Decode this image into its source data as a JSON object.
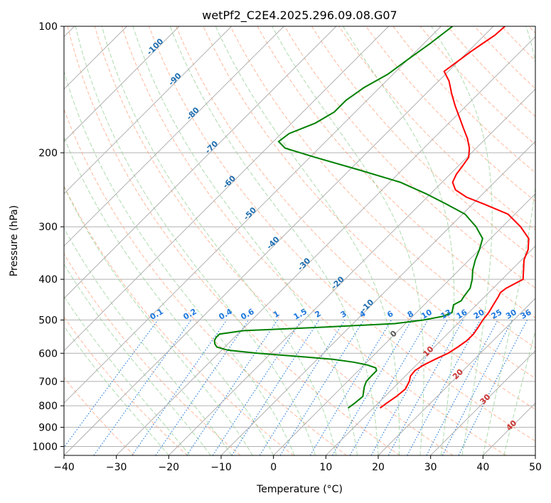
{
  "chart_data": {
    "type": "line",
    "subtype": "skew-T log-P diagram",
    "title": "wetPf2_C2E4.2025.296.09.08.G07",
    "xlabel": "Temperature (°C)",
    "ylabel": "Pressure (hPa)",
    "xlim": [
      -40,
      50
    ],
    "ylim": [
      1050,
      100
    ],
    "y_scale": "log",
    "grid": true,
    "x_ticks": [
      -40,
      -30,
      -20,
      -10,
      0,
      10,
      20,
      30,
      40,
      50
    ],
    "y_ticks": [
      100,
      200,
      300,
      400,
      500,
      600,
      700,
      800,
      900,
      1000
    ],
    "series": [
      {
        "color": "#ff0000",
        "p": [
          810,
          790,
          760,
          730,
          700,
          680,
          660,
          640,
          620,
          600,
          580,
          560,
          540,
          520,
          500,
          480,
          460,
          440,
          430,
          420,
          400,
          380,
          360,
          340,
          320,
          300,
          280,
          265,
          255,
          245,
          235,
          225,
          215,
          205,
          195,
          185,
          175,
          165,
          155,
          145,
          135,
          128,
          120,
          115,
          110,
          105,
          100
        ],
        "t": [
          11.3,
          11.6,
          12.2,
          12.5,
          11.8,
          11.0,
          10.8,
          11.4,
          12.5,
          13.8,
          14.5,
          15.0,
          15.0,
          14.6,
          14.1,
          13.8,
          13.2,
          12.6,
          12.2,
          12.5,
          14.0,
          12.3,
          10.5,
          9.3,
          7.3,
          3.5,
          -1.3,
          -7.8,
          -12.5,
          -16.0,
          -18.0,
          -18.8,
          -19.2,
          -19.7,
          -21.3,
          -23.5,
          -26.2,
          -29.0,
          -32.0,
          -35.0,
          -38.0,
          -40.8,
          -40.0,
          -39.5,
          -38.8,
          -38.0,
          -37.8
        ]
      },
      {
        "color": "#008000",
        "p": [
          810,
          790,
          760,
          740,
          720,
          700,
          680,
          660,
          650,
          640,
          630,
          620,
          610,
          600,
          590,
          580,
          570,
          560,
          550,
          540,
          530,
          520,
          510,
          500,
          490,
          480,
          470,
          460,
          450,
          440,
          430,
          420,
          400,
          380,
          360,
          340,
          320,
          300,
          280,
          265,
          250,
          235,
          220,
          205,
          195,
          188,
          180,
          170,
          160,
          150,
          140,
          130,
          120,
          110,
          100
        ],
        "t": [
          5.2,
          5.5,
          5.8,
          5.0,
          4.2,
          3.6,
          3.5,
          3.5,
          2.8,
          0.7,
          -2.5,
          -7.0,
          -14.5,
          -22.5,
          -28.8,
          -31.5,
          -32.5,
          -33.2,
          -33.5,
          -33.5,
          -29.5,
          -15.0,
          -2.0,
          2.8,
          5.8,
          6.8,
          6.2,
          5.6,
          6.3,
          6.0,
          5.8,
          5.6,
          4.3,
          2.6,
          1.2,
          0.0,
          -1.5,
          -5.0,
          -9.5,
          -15.0,
          -21.0,
          -28.0,
          -38.0,
          -49.0,
          -56.5,
          -59.0,
          -58.5,
          -55.5,
          -54.0,
          -54.0,
          -53.0,
          -51.0,
          -50.0,
          -48.8,
          -47.8
        ]
      }
    ],
    "isotherm_labels": [
      {
        "value": 0,
        "color": "#555555",
        "font_weight": "bold"
      },
      {
        "value": 10,
        "color": "#cc3333",
        "font_weight": "bold"
      },
      {
        "value": 20,
        "color": "#cc3333",
        "font_weight": "bold"
      },
      {
        "value": 30,
        "color": "#cc3333",
        "font_weight": "bold"
      },
      {
        "value": 40,
        "color": "#cc3333",
        "font_weight": "bold"
      }
    ],
    "moist_adiabat_labels": [
      {
        "text": "-100",
        "p": 113
      },
      {
        "text": "-90",
        "p": 135
      },
      {
        "text": "-80",
        "p": 163
      },
      {
        "text": "-70",
        "p": 196
      },
      {
        "text": "-60",
        "p": 237
      },
      {
        "text": "-50",
        "p": 282
      },
      {
        "text": "-40",
        "p": 331
      },
      {
        "text": "-30",
        "p": 372
      },
      {
        "text": "-20",
        "p": 412
      },
      {
        "text": "-10",
        "p": 467
      }
    ],
    "mixing_ratio_values": [
      "0.1",
      "0.2",
      "0.4",
      "0.6",
      "1",
      "1.5",
      "2",
      "3",
      "4",
      "6",
      "8",
      "10",
      "13",
      "16",
      "20",
      "25",
      "30",
      "36"
    ],
    "colors": {
      "temperature": "#ff0000",
      "dewpoint": "#008000",
      "isotherm": "#b0b0b0",
      "dry_adiabat": "#ffa07a",
      "moist_adiabat": "#98d298",
      "mixing_ratio": "#1e78dc",
      "moist_label": "#1f6fb0",
      "background": "#ffffff"
    }
  }
}
